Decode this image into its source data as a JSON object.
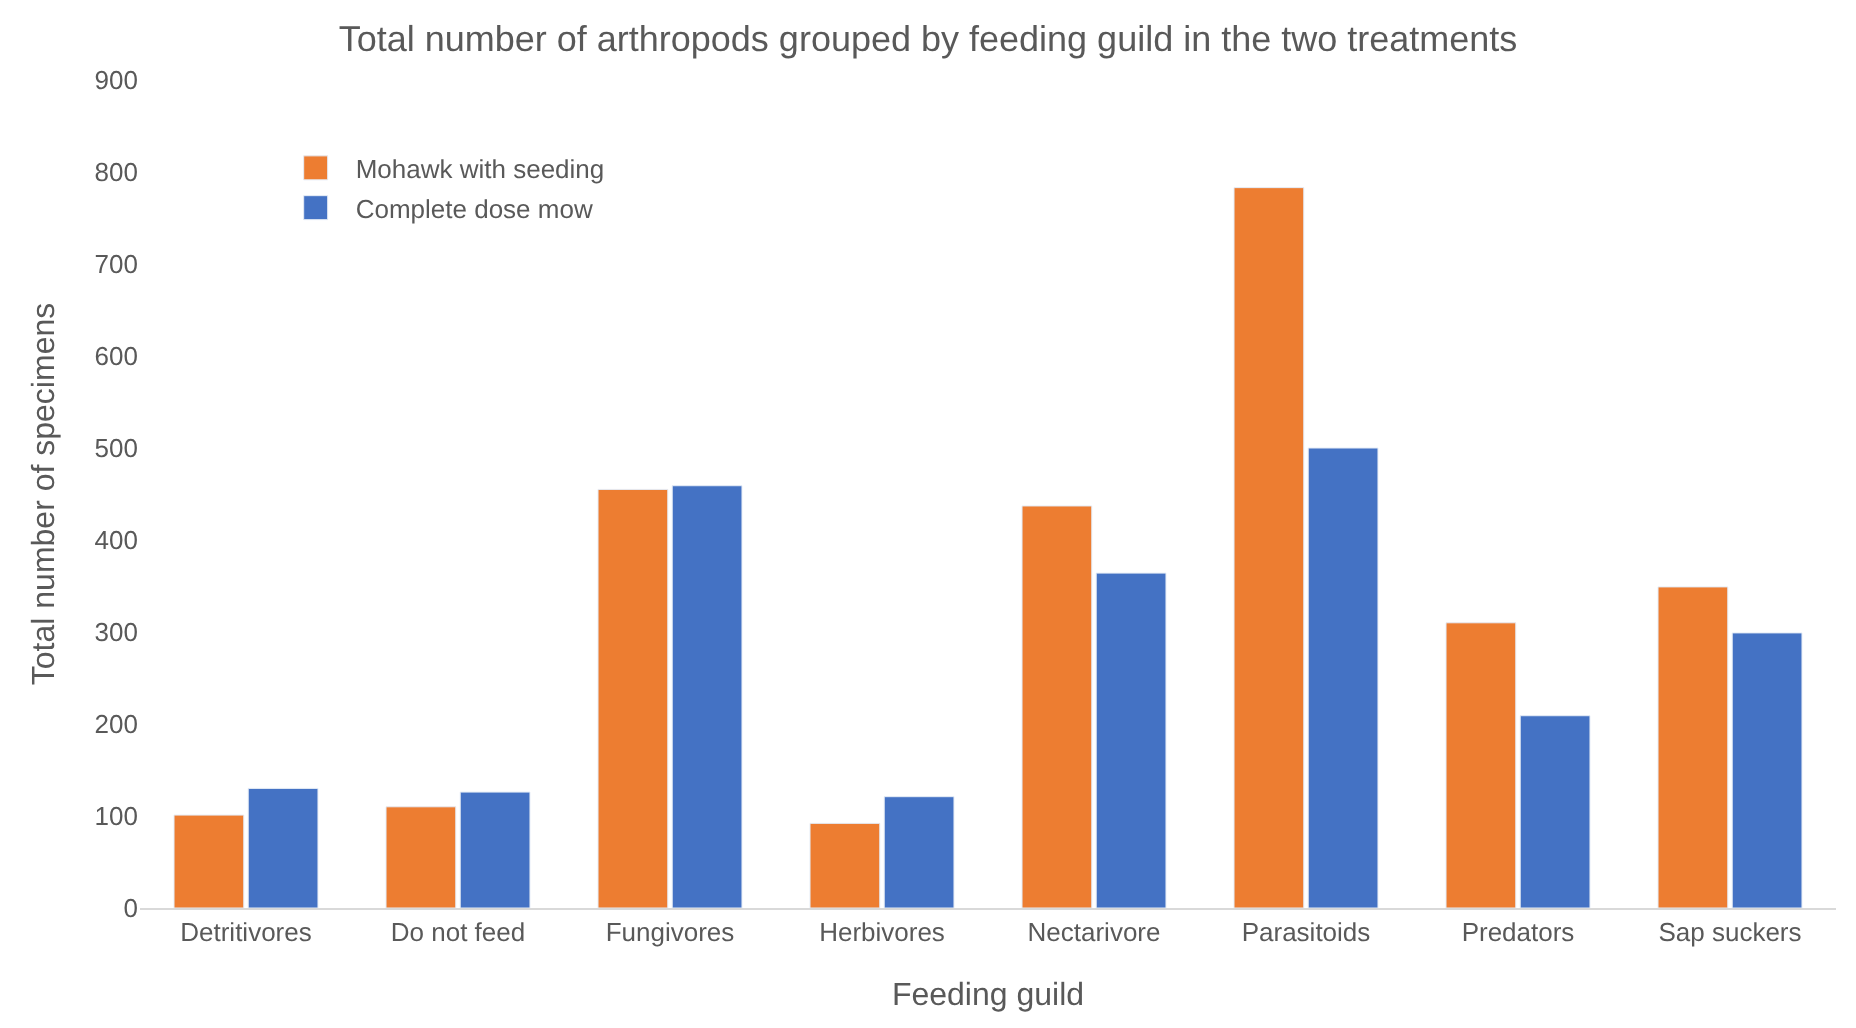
{
  "chart_data": {
    "type": "bar",
    "title": "Total number of arthropods grouped by feeding guild in the two treatments",
    "xlabel": "Feeding guild",
    "ylabel": "Total number of specimens",
    "categories": [
      "Detritivores",
      "Do not feed",
      "Fungivores",
      "Herbivores",
      "Nectarivore",
      "Parasitoids",
      "Predators",
      "Sap suckers"
    ],
    "series": [
      {
        "name": "Mohawk with seeding",
        "color": "#ed7d31",
        "values": [
          101,
          110,
          455,
          92,
          437,
          783,
          310,
          349
        ]
      },
      {
        "name": "Complete dose mow",
        "color": "#4472c4",
        "values": [
          130,
          126,
          459,
          121,
          364,
          500,
          209,
          299
        ]
      }
    ],
    "ylim": [
      0,
      900
    ],
    "yticks": [
      0,
      100,
      200,
      300,
      400,
      500,
      600,
      700,
      800,
      900
    ],
    "grid": false,
    "legend": "top left"
  }
}
